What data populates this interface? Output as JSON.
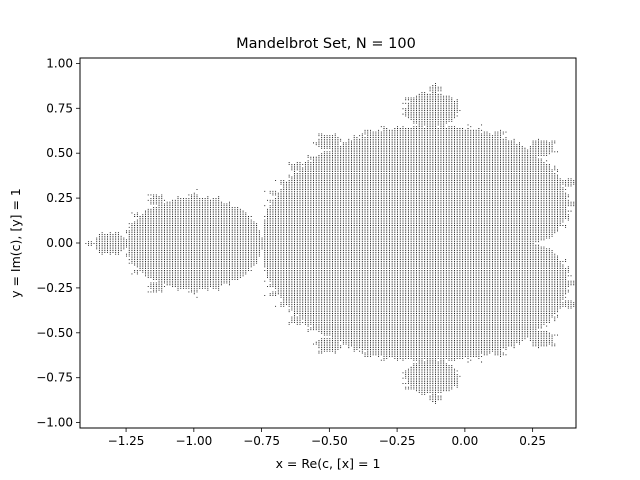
{
  "chart_data": {
    "type": "scatter",
    "title": "Mandelbrot Set, N = 100",
    "xlabel": "x = Re(c, [x] = 1",
    "ylabel": "y = Im(c), [y] = 1",
    "xlim": [
      -1.42,
      0.41
    ],
    "ylim": [
      -1.03,
      1.03
    ],
    "xticks": [
      -1.25,
      -1.0,
      -0.75,
      -0.5,
      -0.25,
      0.0,
      0.25
    ],
    "xtick_labels": [
      "−1.25",
      "−1.00",
      "−0.75",
      "−0.50",
      "−0.25",
      "0.00",
      "0.25"
    ],
    "yticks": [
      -1.0,
      -0.75,
      -0.5,
      -0.25,
      0.0,
      0.25,
      0.5,
      0.75,
      1.0
    ],
    "ytick_labels": [
      "−1.00",
      "−0.75",
      "−0.50",
      "−0.25",
      "0.00",
      "0.25",
      "0.50",
      "0.75",
      "1.00"
    ],
    "grid": false,
    "series": [
      {
        "iterations": 100,
        "x_range": [
          -1.4,
          0.4
        ],
        "y_range": [
          -1.0,
          1.0
        ],
        "x_step": 0.01,
        "y_step": 0.01,
        "marker_color": "#000000"
      }
    ]
  }
}
